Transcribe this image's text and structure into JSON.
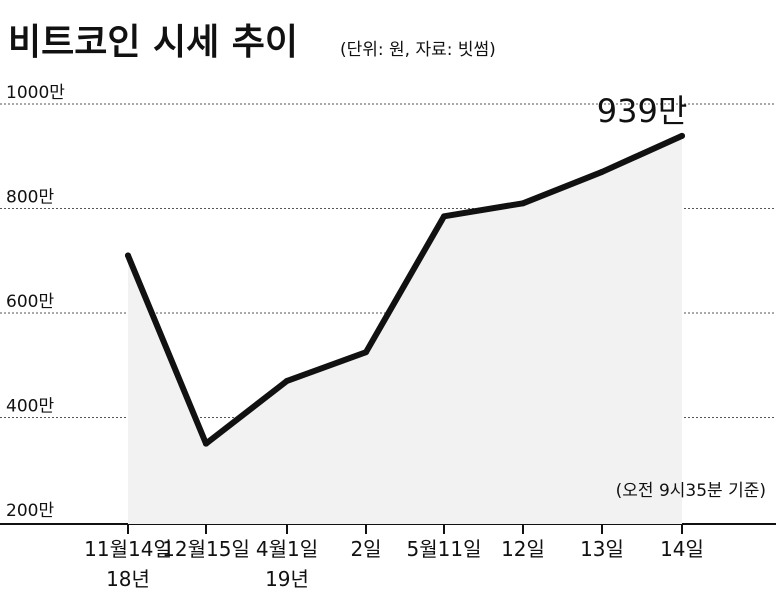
{
  "chart_data": {
    "type": "line",
    "title": "비트코인 시세 추이",
    "unit_source": "(단위: 원, 자료: 빗썸)",
    "note": "(오전 9시35분 기준)",
    "last_value_label": "939만",
    "categories": [
      [
        "11월14일",
        "18년"
      ],
      [
        "12월15일"
      ],
      [
        "4월1일",
        "19년"
      ],
      [
        "2일"
      ],
      [
        "5월11일"
      ],
      [
        "12일"
      ],
      [
        "13일"
      ],
      [
        "14일"
      ]
    ],
    "series": [
      {
        "values": [
          710,
          350,
          470,
          525,
          785,
          810,
          870,
          939
        ]
      }
    ],
    "yticks": [
      {
        "value": 200,
        "label": "200만"
      },
      {
        "value": 400,
        "label": "400만"
      },
      {
        "value": 600,
        "label": "600만"
      },
      {
        "value": 800,
        "label": "800만"
      },
      {
        "value": 1000,
        "label": "1000만"
      }
    ],
    "ylim": [
      200,
      1000
    ],
    "grid": "horizontal dotted",
    "colors": {
      "line": "#111111",
      "area": "#f2f2f2",
      "grid": "#555555"
    }
  }
}
